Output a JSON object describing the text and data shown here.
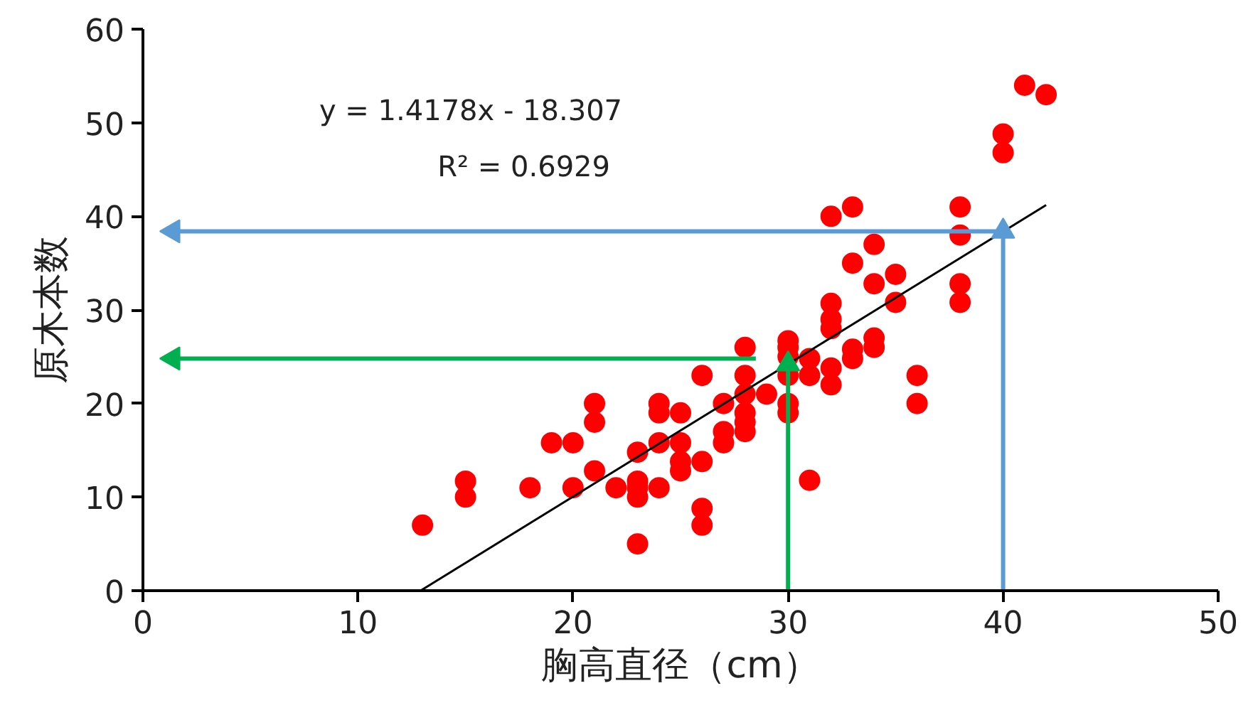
{
  "chart_data": {
    "type": "scatter",
    "xlabel": "胸高直径（cm）",
    "ylabel": "原木本数",
    "xlim": [
      0,
      50
    ],
    "ylim": [
      0,
      60
    ],
    "xticks": [
      0,
      10,
      20,
      30,
      40,
      50
    ],
    "yticks": [
      0,
      10,
      20,
      30,
      40,
      50,
      60
    ],
    "grid": false,
    "marker": "circle",
    "annotations": [
      "y = 1.4178x - 18.307",
      "R² = 0.6929"
    ],
    "series": [
      {
        "color": "#ff0000",
        "x": [
          13,
          15,
          15,
          18,
          19,
          20,
          20,
          21,
          21,
          21,
          22,
          23,
          23,
          23,
          23,
          23,
          24,
          24,
          24,
          24,
          25,
          25,
          25,
          25,
          26,
          26,
          26,
          26,
          27,
          27,
          27,
          28,
          28,
          28,
          28,
          28,
          28,
          29,
          30,
          30,
          30,
          30,
          30,
          30,
          31,
          31,
          31,
          32,
          32,
          32,
          32,
          32,
          32,
          33,
          33,
          33,
          33,
          34,
          34,
          34,
          34,
          35,
          35,
          36,
          36,
          38,
          38,
          38,
          38,
          40,
          40,
          41,
          42
        ],
        "values": [
          7,
          10,
          11.7,
          11,
          15.8,
          11,
          15.8,
          12.8,
          18,
          20,
          11,
          5,
          10,
          11,
          11.7,
          14.8,
          11,
          15.8,
          19,
          20,
          12.8,
          13.8,
          15.8,
          19,
          7,
          8.8,
          13.8,
          23,
          15.8,
          17,
          20,
          17,
          18,
          19,
          21,
          23,
          26,
          21,
          19,
          20,
          23,
          25,
          26,
          26.7,
          11.8,
          23,
          24.8,
          22,
          23.8,
          28,
          29,
          30.7,
          40,
          24.8,
          25.8,
          35,
          41,
          26,
          27,
          32.8,
          37,
          30.8,
          33.8,
          20,
          23,
          30.8,
          32.8,
          38,
          41,
          46.8,
          48.8,
          54,
          53
        ]
      },
      {
        "type": "line",
        "color": "#000000",
        "marker": "none",
        "x": [
          12.91,
          42
        ],
        "values": [
          0,
          41.2
        ]
      },
      {
        "type": "line",
        "color": "#5b9bd5",
        "marker": "triangle",
        "x": [
          40,
          40
        ],
        "values": [
          0,
          38.4
        ]
      },
      {
        "type": "line",
        "color": "#5b9bd5",
        "marker": "triangle",
        "x": [
          40,
          1.4
        ],
        "values": [
          38.4,
          38.4
        ]
      },
      {
        "type": "line",
        "color": "#00b050",
        "marker": "triangle",
        "x": [
          30,
          30
        ],
        "values": [
          0,
          24.2
        ]
      },
      {
        "type": "line",
        "color": "#00b050",
        "marker": "triangle",
        "x": [
          28.5,
          1.4
        ],
        "values": [
          24.8,
          24.8
        ]
      }
    ]
  }
}
